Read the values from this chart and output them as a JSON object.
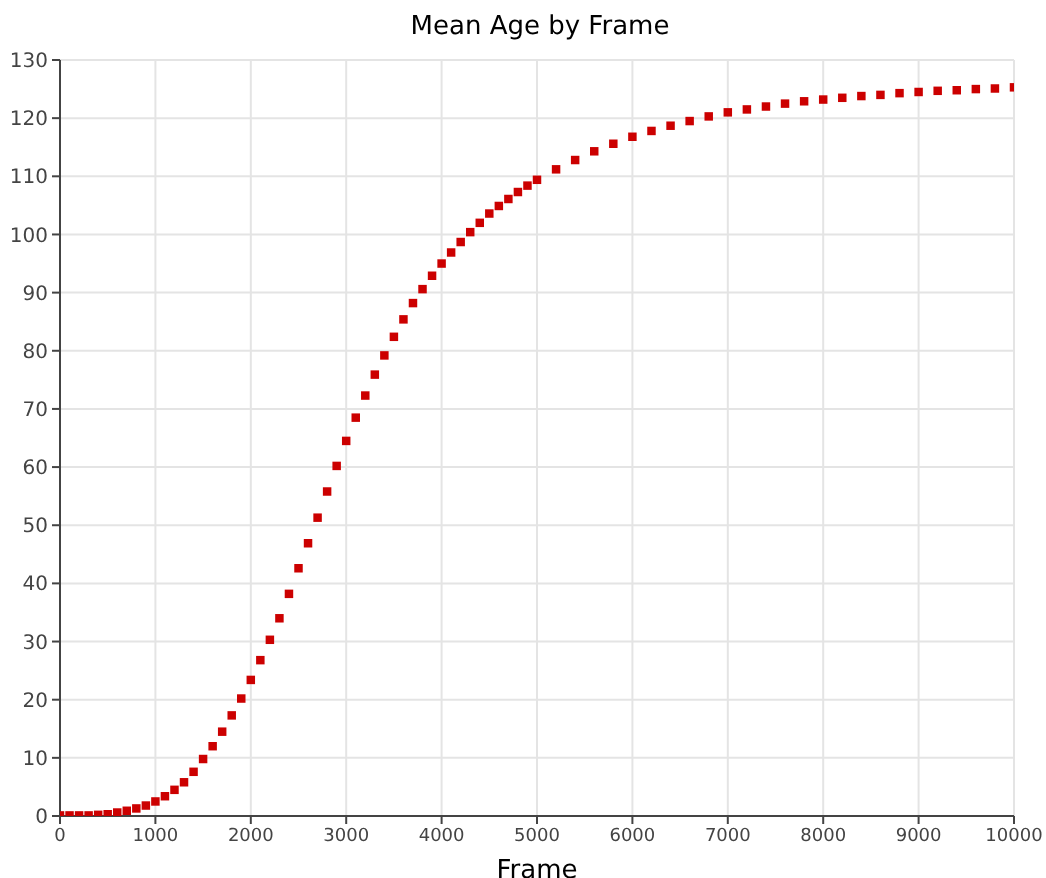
{
  "chart_data": {
    "type": "scatter",
    "title": "Mean Age by Frame",
    "xlabel": "Frame",
    "x": [
      0,
      100,
      200,
      300,
      400,
      500,
      600,
      700,
      800,
      900,
      1000,
      1100,
      1200,
      1300,
      1400,
      1500,
      1600,
      1700,
      1800,
      1900,
      2000,
      2100,
      2200,
      2300,
      2400,
      2500,
      2600,
      2700,
      2800,
      2900,
      3000,
      3100,
      3200,
      3300,
      3400,
      3500,
      3600,
      3700,
      3800,
      3900,
      4000,
      4100,
      4200,
      4300,
      4400,
      4500,
      4600,
      4700,
      4800,
      4900,
      5000,
      5200,
      5400,
      5600,
      5800,
      6000,
      6200,
      6400,
      6600,
      6800,
      7000,
      7200,
      7400,
      7600,
      7800,
      8000,
      8200,
      8400,
      8600,
      8800,
      9000,
      9200,
      9400,
      9600,
      9800,
      10000
    ],
    "values": [
      0.1,
      0.1,
      0.1,
      0.1,
      0.2,
      0.3,
      0.6,
      0.9,
      1.3,
      1.8,
      2.5,
      3.4,
      4.5,
      5.8,
      7.6,
      9.8,
      12.0,
      14.5,
      17.3,
      20.2,
      23.4,
      26.8,
      30.3,
      34.0,
      38.2,
      42.6,
      46.9,
      51.3,
      55.8,
      60.2,
      64.5,
      68.5,
      72.3,
      75.9,
      79.2,
      82.4,
      85.4,
      88.2,
      90.6,
      92.9,
      95.0,
      96.9,
      98.7,
      100.4,
      102.0,
      103.6,
      104.9,
      106.1,
      107.3,
      108.4,
      109.4,
      111.2,
      112.8,
      114.3,
      115.6,
      116.8,
      117.8,
      118.7,
      119.5,
      120.3,
      121.0,
      121.5,
      122.0,
      122.5,
      122.9,
      123.2,
      123.5,
      123.8,
      124.0,
      124.3,
      124.5,
      124.7,
      124.8,
      125.0,
      125.1,
      125.3
    ],
    "color": "#cc0000",
    "marker": "square",
    "grid": true,
    "xlim": [
      0,
      10000
    ],
    "xticks": [
      0,
      1000,
      2000,
      3000,
      4000,
      5000,
      6000,
      7000,
      8000,
      9000,
      10000
    ],
    "ylim": [
      0,
      130
    ],
    "yticks": [
      0,
      10,
      20,
      30,
      40,
      50,
      60,
      70,
      80,
      90,
      100,
      110,
      120,
      130
    ]
  }
}
